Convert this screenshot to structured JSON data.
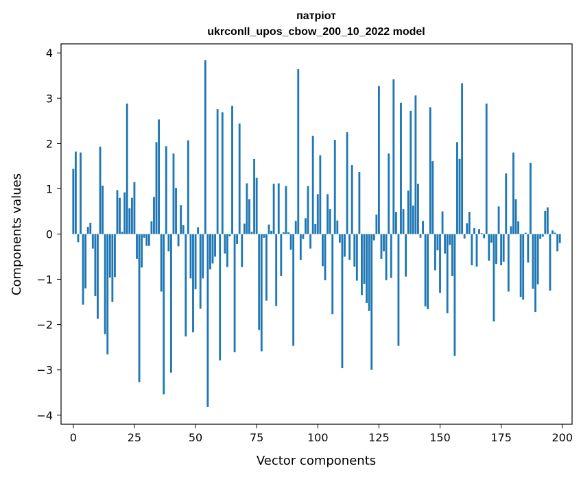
{
  "chart_data": {
    "type": "bar",
    "title_line1": "патріот",
    "title_line2": "ukrconll_upos_cbow_200_10_2022 model",
    "xlabel": "Vector components",
    "ylabel": "Components values",
    "xlim": [
      -5,
      204
    ],
    "ylim": [
      -4.2,
      4.2
    ],
    "xticks": [
      0,
      25,
      50,
      75,
      100,
      125,
      150,
      175,
      200
    ],
    "yticks": [
      -4,
      -3,
      -2,
      -1,
      0,
      1,
      2,
      3,
      4
    ],
    "ytick_labels": [
      "−4",
      "−3",
      "−2",
      "−1",
      "0",
      "1",
      "2",
      "3",
      "4"
    ],
    "bar_color": "#1f77b4",
    "x": [
      0,
      1,
      2,
      3,
      4,
      5,
      6,
      7,
      8,
      9,
      10,
      11,
      12,
      13,
      14,
      15,
      16,
      17,
      18,
      19,
      20,
      21,
      22,
      23,
      24,
      25,
      26,
      27,
      28,
      29,
      30,
      31,
      32,
      33,
      34,
      35,
      36,
      37,
      38,
      39,
      40,
      41,
      42,
      43,
      44,
      45,
      46,
      47,
      48,
      49,
      50,
      51,
      52,
      53,
      54,
      55,
      56,
      57,
      58,
      59,
      60,
      61,
      62,
      63,
      64,
      65,
      66,
      67,
      68,
      69,
      70,
      71,
      72,
      73,
      74,
      75,
      76,
      77,
      78,
      79,
      80,
      81,
      82,
      83,
      84,
      85,
      86,
      87,
      88,
      89,
      90,
      91,
      92,
      93,
      94,
      95,
      96,
      97,
      98,
      99,
      100,
      101,
      102,
      103,
      104,
      105,
      106,
      107,
      108,
      109,
      110,
      111,
      112,
      113,
      114,
      115,
      116,
      117,
      118,
      119,
      120,
      121,
      122,
      123,
      124,
      125,
      126,
      127,
      128,
      129,
      130,
      131,
      132,
      133,
      134,
      135,
      136,
      137,
      138,
      139,
      140,
      141,
      142,
      143,
      144,
      145,
      146,
      147,
      148,
      149,
      150,
      151,
      152,
      153,
      154,
      155,
      156,
      157,
      158,
      159,
      160,
      161,
      162,
      163,
      164,
      165,
      166,
      167,
      168,
      169,
      170,
      171,
      172,
      173,
      174,
      175,
      176,
      177,
      178,
      179,
      180,
      181,
      182,
      183,
      184,
      185,
      186,
      187,
      188,
      189,
      190,
      191,
      192,
      193,
      194,
      195,
      196,
      197,
      198,
      199
    ],
    "values": [
      1.44,
      1.82,
      -0.18,
      1.8,
      -1.56,
      -1.2,
      0.16,
      0.25,
      -0.32,
      -1.37,
      -1.87,
      1.93,
      1.07,
      -2.21,
      -2.66,
      -0.96,
      -1.5,
      -0.95,
      0.97,
      0.8,
      0.05,
      0.92,
      2.88,
      0.57,
      0.8,
      1.15,
      -0.55,
      -3.27,
      -0.74,
      -0.08,
      -0.26,
      -0.26,
      0.28,
      0.82,
      2.03,
      2.53,
      -1.27,
      -3.54,
      1.94,
      -0.38,
      -3.06,
      1.78,
      1.02,
      -0.27,
      0.64,
      0.2,
      -2.26,
      2.07,
      -0.98,
      -2.17,
      -1.22,
      0.15,
      -1.65,
      -0.98,
      3.84,
      -3.82,
      -0.78,
      -0.65,
      -0.5,
      2.76,
      -2.79,
      2.69,
      -0.43,
      -0.73,
      -0.05,
      2.83,
      -2.61,
      -0.22,
      2.44,
      -0.73,
      0.23,
      1.12,
      0.77,
      0.05,
      1.66,
      1.24,
      -2.12,
      -2.59,
      -0.08,
      -1.47,
      0.21,
      0.07,
      1.11,
      -1.59,
      1.12,
      -0.93,
      0.04,
      1.06,
      0.04,
      -0.35,
      -2.47,
      0.29,
      3.64,
      -0.57,
      -0.11,
      0.35,
      1.06,
      -0.32,
      2.17,
      0.22,
      0.88,
      1.74,
      -0.71,
      -1.02,
      0.88,
      0.55,
      -1.77,
      2.08,
      0.3,
      -0.19,
      -2.96,
      -0.5,
      2.25,
      -0.57,
      1.52,
      -0.72,
      -1.03,
      1.37,
      -1.35,
      -1.1,
      -1.52,
      -1.7,
      -3.0,
      -0.14,
      0.43,
      3.27,
      -0.55,
      -0.38,
      -1.02,
      1.78,
      -0.97,
      3.42,
      0.49,
      -2.47,
      2.9,
      0.55,
      -0.94,
      0.96,
      2.72,
      0.63,
      3.06,
      1.11,
      -0.08,
      0.29,
      -1.6,
      -1.66,
      2.8,
      1.61,
      -0.8,
      -0.36,
      -1.3,
      0.5,
      -0.43,
      -1.75,
      -0.24,
      -0.93,
      -2.69,
      2.03,
      1.66,
      3.33,
      -0.1,
      0.24,
      0.49,
      -0.69,
      0.13,
      -0.72,
      0.11,
      0.02,
      -0.09,
      2.88,
      -0.59,
      -0.19,
      -1.93,
      -0.66,
      0.61,
      -0.69,
      -0.61,
      1.34,
      -1.27,
      0.17,
      1.8,
      0.77,
      0.28,
      -1.39,
      -1.45,
      0.03,
      -0.63,
      1.57,
      -1.21,
      -1.72,
      -1.11,
      -0.11,
      -0.06,
      0.51,
      0.59,
      -1.25,
      0.08,
      0.03,
      -0.38,
      -0.2
    ]
  }
}
